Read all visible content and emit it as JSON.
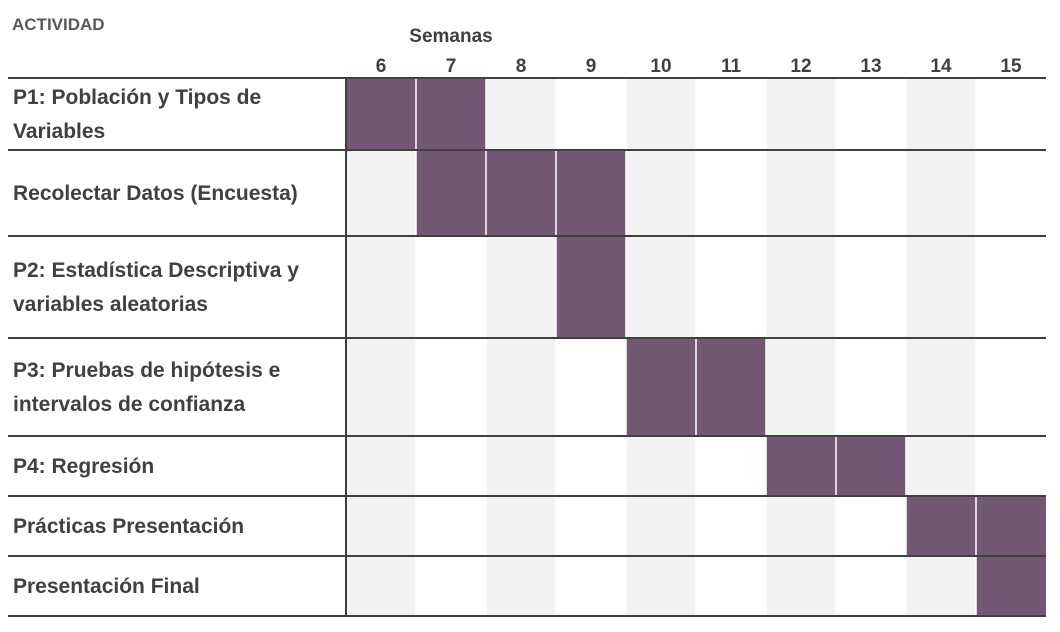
{
  "header": {
    "activity_label": "ACTIVIDAD",
    "weeks_label": "Semanas"
  },
  "colors": {
    "bar": "#725872",
    "band": "#f2f2f2",
    "row_border": "#3f3f3f",
    "column_grid": "#ffffff"
  },
  "chart_data": {
    "type": "gantt",
    "xlabel": "Semanas",
    "weeks": [
      6,
      7,
      8,
      9,
      10,
      11,
      12,
      13,
      14,
      15
    ],
    "tasks": [
      {
        "label_lines": [
          "P1: Población y Tipos de",
          "Variables"
        ],
        "start": 6,
        "end": 7
      },
      {
        "label_lines": [
          "Recolectar Datos (Encuesta)"
        ],
        "start": 7,
        "end": 9
      },
      {
        "label_lines": [
          "P2: Estadística Descriptiva y",
          "variables aleatorias"
        ],
        "start": 9,
        "end": 9
      },
      {
        "label_lines": [
          "P3: Pruebas de hipótesis e",
          "intervalos de confianza"
        ],
        "start": 10,
        "end": 11
      },
      {
        "label_lines": [
          "P4: Regresión"
        ],
        "start": 12,
        "end": 13
      },
      {
        "label_lines": [
          "Prácticas Presentación"
        ],
        "start": 14,
        "end": 15
      },
      {
        "label_lines": [
          "Presentación Final"
        ],
        "start": 15,
        "end": 15
      }
    ]
  }
}
